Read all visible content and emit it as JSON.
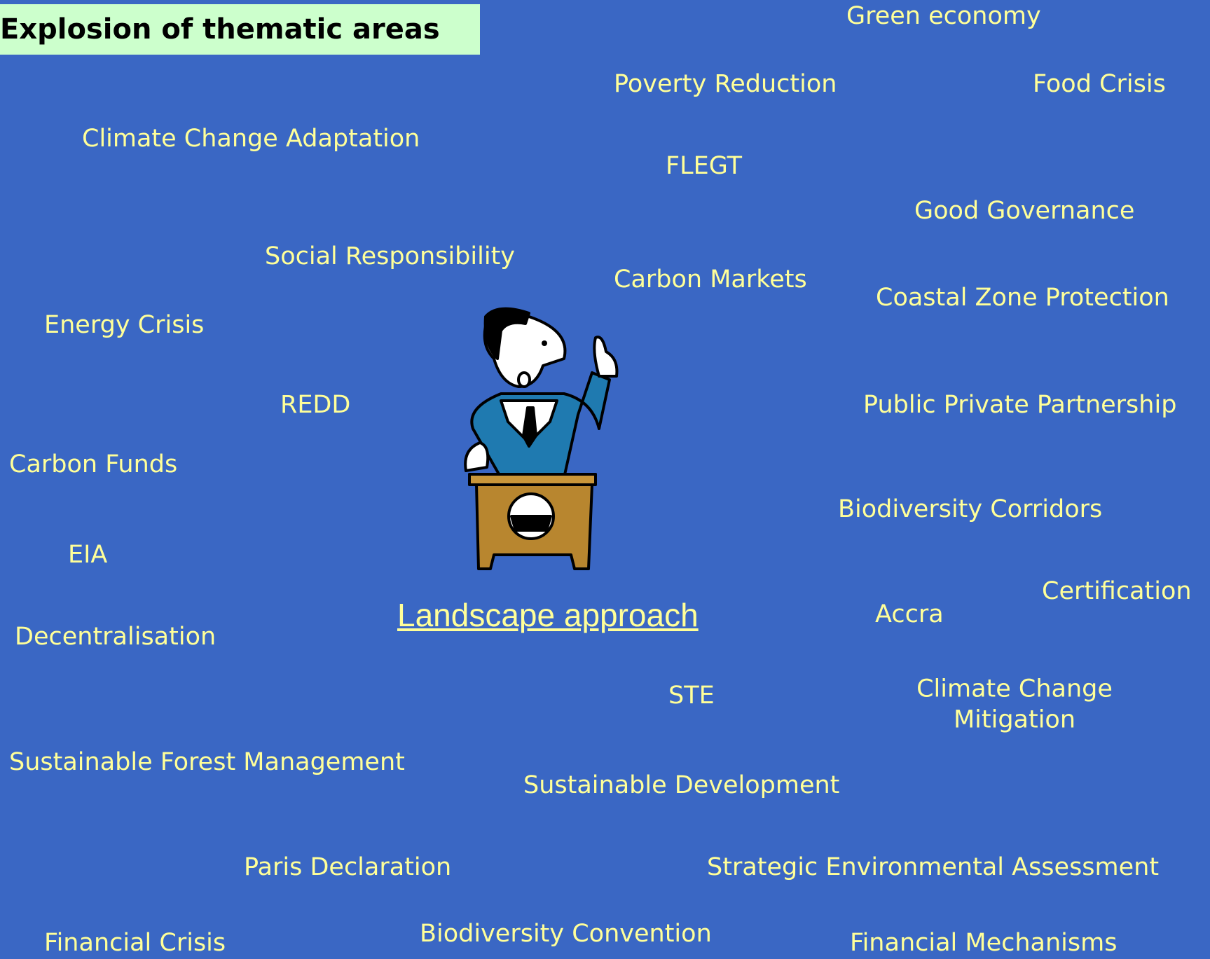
{
  "title": "Explosion of thematic areas",
  "terms": [
    "Green economy",
    "Poverty Reduction",
    "Food Crisis",
    "Climate Change Adaptation",
    "FLEGT",
    "Good Governance",
    "Social Responsibility",
    "Carbon Markets",
    "Coastal Zone Protection",
    "Energy Crisis",
    "REDD",
    "Public Private Partnership",
    "Carbon Funds",
    "Biodiversity Corridors",
    "EIA",
    "Certification",
    "Accra",
    "Decentralisation",
    "STE",
    "Climate Change Mitigation",
    "Sustainable Forest Management",
    "Sustainable Development",
    "Paris Declaration",
    "Strategic Environmental Assessment",
    "Financial Crisis",
    "Biodiversity Convention",
    "Financial Mechanisms"
  ],
  "highlight": "Landscape approach"
}
